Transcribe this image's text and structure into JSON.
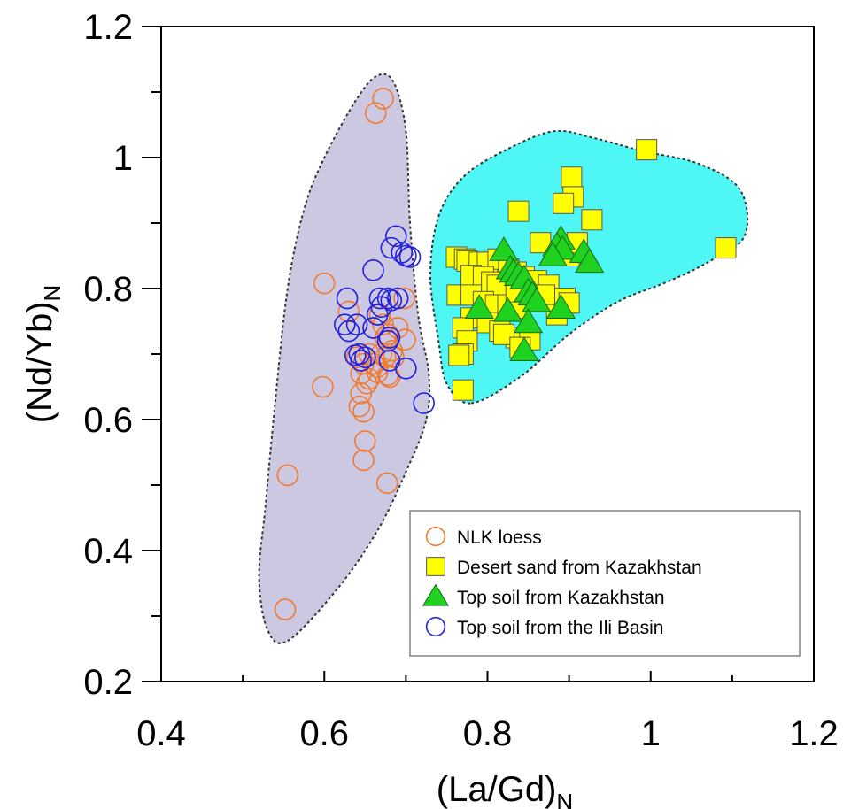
{
  "chart_data": {
    "type": "scatter",
    "xlabel": "(La/Gd)",
    "xlabel_sub": "N",
    "ylabel": "(Nd/Yb)",
    "ylabel_sub": "N",
    "xlim": [
      0.4,
      1.2
    ],
    "ylim": [
      0.2,
      1.2
    ],
    "x_ticks": [
      0.4,
      0.6,
      0.8,
      1,
      1.2
    ],
    "x_tick_labels": [
      "0.4",
      "0.6",
      "0.8",
      "1",
      "1.2"
    ],
    "y_ticks": [
      0.2,
      0.4,
      0.6,
      0.8,
      1,
      1.2
    ],
    "y_tick_labels": [
      "0.2",
      "0.4",
      "0.6",
      "0.8",
      "1",
      "1.2"
    ],
    "grid": false,
    "legend_position": "bottom-right",
    "regions": [
      {
        "fill": "#cdc8e2",
        "outline": [
          [
            0.555,
            0.262
          ],
          [
            0.615,
            0.34
          ],
          [
            0.665,
            0.43
          ],
          [
            0.7,
            0.52
          ],
          [
            0.725,
            0.6
          ],
          [
            0.728,
            0.67
          ],
          [
            0.715,
            0.76
          ],
          [
            0.705,
            0.9
          ],
          [
            0.7,
            1.04
          ],
          [
            0.685,
            1.115
          ],
          [
            0.665,
            1.125
          ],
          [
            0.64,
            1.09
          ],
          [
            0.6,
            1.0
          ],
          [
            0.575,
            0.92
          ],
          [
            0.555,
            0.8
          ],
          [
            0.54,
            0.63
          ],
          [
            0.528,
            0.47
          ],
          [
            0.52,
            0.36
          ],
          [
            0.53,
            0.28
          ]
        ]
      },
      {
        "fill": "#4ef6f4",
        "outline": [
          [
            0.78,
            0.625
          ],
          [
            0.84,
            0.665
          ],
          [
            0.9,
            0.73
          ],
          [
            0.96,
            0.78
          ],
          [
            1.02,
            0.81
          ],
          [
            1.07,
            0.84
          ],
          [
            1.115,
            0.88
          ],
          [
            1.11,
            0.95
          ],
          [
            1.06,
            0.99
          ],
          [
            0.99,
            1.01
          ],
          [
            0.93,
            1.03
          ],
          [
            0.88,
            1.04
          ],
          [
            0.82,
            1.01
          ],
          [
            0.77,
            0.97
          ],
          [
            0.74,
            0.91
          ],
          [
            0.73,
            0.82
          ],
          [
            0.74,
            0.72
          ],
          [
            0.75,
            0.655
          ]
        ]
      }
    ],
    "series": [
      {
        "name": "NLK loess",
        "marker": "circle",
        "color": "#f07a30",
        "fill": "none",
        "points": [
          [
            0.672,
            1.09
          ],
          [
            0.663,
            1.068
          ],
          [
            0.6,
            0.808
          ],
          [
            0.63,
            0.765
          ],
          [
            0.598,
            0.65
          ],
          [
            0.555,
            0.515
          ],
          [
            0.552,
            0.31
          ],
          [
            0.645,
            0.64
          ],
          [
            0.643,
            0.62
          ],
          [
            0.648,
            0.612
          ],
          [
            0.65,
            0.567
          ],
          [
            0.648,
            0.538
          ],
          [
            0.677,
            0.503
          ],
          [
            0.66,
            0.74
          ],
          [
            0.668,
            0.76
          ],
          [
            0.672,
            0.745
          ],
          [
            0.678,
            0.73
          ],
          [
            0.683,
            0.705
          ],
          [
            0.655,
            0.7
          ],
          [
            0.66,
            0.685
          ],
          [
            0.665,
            0.68
          ],
          [
            0.67,
            0.7
          ],
          [
            0.675,
            0.695
          ],
          [
            0.678,
            0.668
          ],
          [
            0.68,
            0.665
          ],
          [
            0.655,
            0.662
          ],
          [
            0.652,
            0.655
          ],
          [
            0.645,
            0.67
          ],
          [
            0.648,
            0.685
          ],
          [
            0.698,
            0.785
          ],
          [
            0.699,
            0.722
          ],
          [
            0.69,
            0.74
          ],
          [
            0.685,
            0.695
          ],
          [
            0.64,
            0.695
          ],
          [
            0.675,
            0.725
          ],
          [
            0.665,
            0.672
          ]
        ]
      },
      {
        "name": "Desert sand from Kazakhstan",
        "marker": "square",
        "color": "#ffff00",
        "fill": "#ffff00",
        "points": [
          [
            0.995,
            1.012
          ],
          [
            0.903,
            0.97
          ],
          [
            0.905,
            0.94
          ],
          [
            0.893,
            0.93
          ],
          [
            0.928,
            0.905
          ],
          [
            0.838,
            0.918
          ],
          [
            0.762,
            0.848
          ],
          [
            0.772,
            0.845
          ],
          [
            0.775,
            0.842
          ],
          [
            0.79,
            0.84
          ],
          [
            0.8,
            0.84
          ],
          [
            0.813,
            0.845
          ],
          [
            0.826,
            0.83
          ],
          [
            0.78,
            0.82
          ],
          [
            0.795,
            0.818
          ],
          [
            0.805,
            0.81
          ],
          [
            0.812,
            0.805
          ],
          [
            0.835,
            0.825
          ],
          [
            0.845,
            0.818
          ],
          [
            0.86,
            0.812
          ],
          [
            0.875,
            0.805
          ],
          [
            0.9,
            0.85
          ],
          [
            0.865,
            0.87
          ],
          [
            0.91,
            0.87
          ],
          [
            0.763,
            0.79
          ],
          [
            0.78,
            0.79
          ],
          [
            0.795,
            0.78
          ],
          [
            0.81,
            0.775
          ],
          [
            0.825,
            0.775
          ],
          [
            0.84,
            0.77
          ],
          [
            0.78,
            0.755
          ],
          [
            0.8,
            0.748
          ],
          [
            0.815,
            0.735
          ],
          [
            0.835,
            0.725
          ],
          [
            0.852,
            0.722
          ],
          [
            0.835,
            0.795
          ],
          [
            0.87,
            0.79
          ],
          [
            0.895,
            0.785
          ],
          [
            0.9,
            0.778
          ],
          [
            0.885,
            0.76
          ],
          [
            0.77,
            0.74
          ],
          [
            0.775,
            0.72
          ],
          [
            0.82,
            0.73
          ],
          [
            0.84,
            0.71
          ],
          [
            0.77,
            0.7
          ],
          [
            0.765,
            0.698
          ],
          [
            0.77,
            0.645
          ],
          [
            1.092,
            0.862
          ]
        ]
      },
      {
        "name": "Top soil from Kazakhstan",
        "marker": "triangle",
        "color": "#1fd21f",
        "fill": "#1fd21f",
        "points": [
          [
            0.82,
            0.858
          ],
          [
            0.828,
            0.83
          ],
          [
            0.832,
            0.825
          ],
          [
            0.838,
            0.82
          ],
          [
            0.845,
            0.815
          ],
          [
            0.89,
            0.875
          ],
          [
            0.885,
            0.865
          ],
          [
            0.892,
            0.86
          ],
          [
            0.88,
            0.85
          ],
          [
            0.918,
            0.855
          ],
          [
            0.925,
            0.84
          ],
          [
            0.85,
            0.795
          ],
          [
            0.855,
            0.79
          ],
          [
            0.86,
            0.78
          ],
          [
            0.79,
            0.77
          ],
          [
            0.825,
            0.765
          ],
          [
            0.85,
            0.748
          ],
          [
            0.845,
            0.705
          ],
          [
            0.89,
            0.77
          ]
        ]
      },
      {
        "name": "Top soil from the Ili Basin",
        "marker": "circle",
        "color": "#2020e0",
        "fill": "none",
        "points": [
          [
            0.688,
            0.88
          ],
          [
            0.682,
            0.862
          ],
          [
            0.695,
            0.855
          ],
          [
            0.7,
            0.85
          ],
          [
            0.705,
            0.848
          ],
          [
            0.66,
            0.828
          ],
          [
            0.628,
            0.785
          ],
          [
            0.668,
            0.785
          ],
          [
            0.678,
            0.785
          ],
          [
            0.682,
            0.782
          ],
          [
            0.69,
            0.785
          ],
          [
            0.67,
            0.772
          ],
          [
            0.665,
            0.76
          ],
          [
            0.625,
            0.745
          ],
          [
            0.64,
            0.745
          ],
          [
            0.66,
            0.74
          ],
          [
            0.68,
            0.725
          ],
          [
            0.678,
            0.72
          ],
          [
            0.63,
            0.735
          ],
          [
            0.638,
            0.698
          ],
          [
            0.645,
            0.69
          ],
          [
            0.643,
            0.7
          ],
          [
            0.65,
            0.695
          ],
          [
            0.68,
            0.69
          ],
          [
            0.7,
            0.678
          ],
          [
            0.722,
            0.625
          ]
        ]
      }
    ]
  }
}
